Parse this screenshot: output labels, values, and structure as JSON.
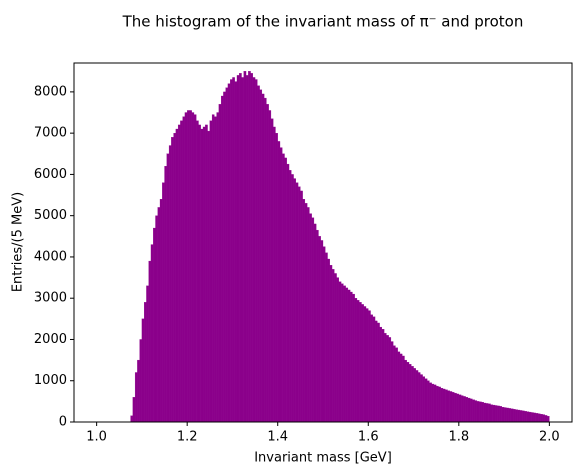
{
  "chart_data": {
    "type": "histogram",
    "title": "The histogram of the invariant mass of π⁻ and proton",
    "x_label": "Invariant mass [GeV]",
    "y_label": "Entries/(5 MeV)",
    "color": "#8b008b",
    "bins": [
      1.0,
      1.005,
      1.01,
      1.015,
      1.02,
      1.025,
      1.03,
      1.035,
      1.04,
      1.045,
      1.05,
      1.055,
      1.06,
      1.065,
      1.07,
      1.075,
      1.08,
      1.085,
      1.09,
      1.095,
      1.1,
      1.105,
      1.11,
      1.115,
      1.12,
      1.125,
      1.13,
      1.135,
      1.14,
      1.145,
      1.15,
      1.155,
      1.16,
      1.165,
      1.17,
      1.175,
      1.18,
      1.185,
      1.19,
      1.195,
      1.2,
      1.205,
      1.21,
      1.215,
      1.22,
      1.225,
      1.23,
      1.235,
      1.24,
      1.245,
      1.25,
      1.255,
      1.26,
      1.265,
      1.27,
      1.275,
      1.28,
      1.285,
      1.29,
      1.295,
      1.3,
      1.305,
      1.31,
      1.315,
      1.32,
      1.325,
      1.33,
      1.335,
      1.34,
      1.345,
      1.35,
      1.355,
      1.36,
      1.365,
      1.37,
      1.375,
      1.38,
      1.385,
      1.39,
      1.395,
      1.4,
      1.405,
      1.41,
      1.415,
      1.42,
      1.425,
      1.43,
      1.435,
      1.44,
      1.445,
      1.45,
      1.455,
      1.46,
      1.465,
      1.47,
      1.475,
      1.48,
      1.485,
      1.49,
      1.495,
      1.5,
      1.505,
      1.51,
      1.515,
      1.52,
      1.525,
      1.53,
      1.535,
      1.54,
      1.545,
      1.55,
      1.555,
      1.56,
      1.565,
      1.57,
      1.575,
      1.58,
      1.585,
      1.59,
      1.595,
      1.6,
      1.605,
      1.61,
      1.615,
      1.62,
      1.625,
      1.63,
      1.635,
      1.64,
      1.645,
      1.65,
      1.655,
      1.66,
      1.665,
      1.67,
      1.675,
      1.68,
      1.685,
      1.69,
      1.695,
      1.7,
      1.705,
      1.71,
      1.715,
      1.72,
      1.725,
      1.73,
      1.735,
      1.74,
      1.745,
      1.75,
      1.755,
      1.76,
      1.765,
      1.77,
      1.775,
      1.78,
      1.785,
      1.79,
      1.795,
      1.8,
      1.805,
      1.81,
      1.815,
      1.82,
      1.825,
      1.83,
      1.835,
      1.84,
      1.845,
      1.85,
      1.855,
      1.86,
      1.865,
      1.87,
      1.875,
      1.88,
      1.885,
      1.89,
      1.895,
      1.9,
      1.905,
      1.91,
      1.915,
      1.92,
      1.925,
      1.93,
      1.935,
      1.94,
      1.945,
      1.95,
      1.955,
      1.96,
      1.965,
      1.97,
      1.975,
      1.98,
      1.985,
      1.99,
      1.995,
      2.0
    ],
    "values": [
      0,
      0,
      0,
      0,
      0,
      0,
      0,
      0,
      0,
      0,
      0,
      0,
      0,
      0,
      0,
      150,
      600,
      1200,
      1500,
      2000,
      2500,
      2900,
      3300,
      3900,
      4300,
      4700,
      5000,
      5200,
      5400,
      5800,
      6200,
      6500,
      6700,
      6900,
      7000,
      7100,
      7200,
      7300,
      7400,
      7500,
      7550,
      7550,
      7500,
      7450,
      7300,
      7200,
      7100,
      7150,
      7200,
      7050,
      7300,
      7450,
      7400,
      7500,
      7700,
      7900,
      8000,
      8100,
      8200,
      8300,
      8350,
      8250,
      8400,
      8450,
      8350,
      8500,
      8400,
      8500,
      8450,
      8350,
      8300,
      8150,
      8050,
      7950,
      7850,
      7700,
      7550,
      7350,
      7150,
      7000,
      6800,
      6650,
      6500,
      6400,
      6250,
      6100,
      6000,
      5900,
      5800,
      5700,
      5600,
      5400,
      5300,
      5200,
      5050,
      4950,
      4800,
      4650,
      4500,
      4400,
      4250,
      4100,
      3950,
      3800,
      3700,
      3600,
      3500,
      3400,
      3350,
      3300,
      3250,
      3200,
      3150,
      3100,
      3000,
      2950,
      2900,
      2850,
      2800,
      2750,
      2700,
      2600,
      2550,
      2450,
      2400,
      2300,
      2250,
      2150,
      2100,
      2050,
      1950,
      1850,
      1800,
      1700,
      1650,
      1600,
      1500,
      1450,
      1400,
      1350,
      1300,
      1250,
      1200,
      1150,
      1100,
      1050,
      1000,
      950,
      920,
      900,
      870,
      850,
      820,
      800,
      780,
      760,
      740,
      720,
      700,
      680,
      660,
      640,
      620,
      600,
      580,
      560,
      540,
      520,
      500,
      490,
      480,
      460,
      450,
      440,
      420,
      410,
      400,
      390,
      380,
      360,
      350,
      340,
      330,
      320,
      310,
      300,
      290,
      280,
      270,
      260,
      250,
      240,
      230,
      220,
      210,
      200,
      190,
      180,
      160,
      140
    ],
    "xlim": [
      0.95,
      2.05
    ],
    "ylim": [
      0,
      8700
    ],
    "xticks": [
      {
        "value": 1,
        "label": "1.0"
      },
      1.2,
      1.4,
      1.6,
      1.8,
      {
        "value": 2,
        "label": "2.0"
      }
    ],
    "yticks": [
      0,
      1000,
      2000,
      3000,
      4000,
      5000,
      6000,
      7000,
      8000
    ]
  }
}
